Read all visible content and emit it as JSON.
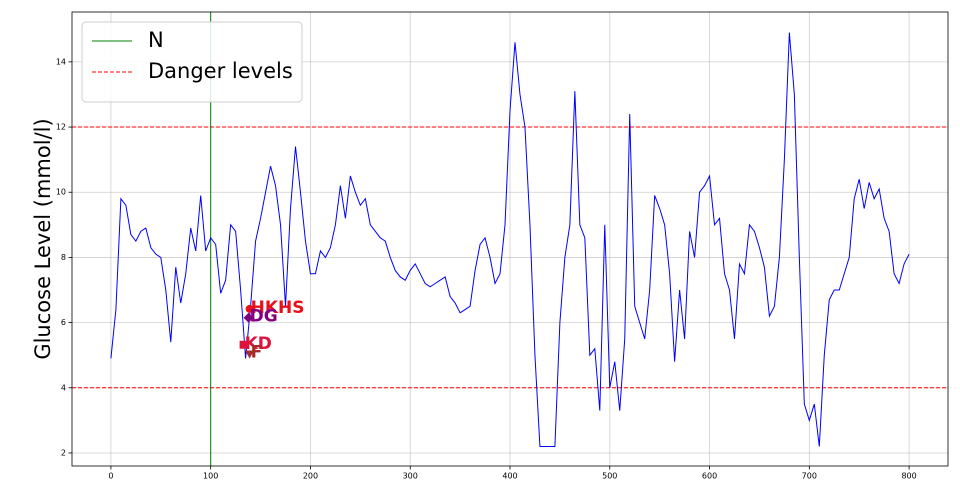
{
  "chart_data": {
    "type": "line",
    "ylabel": "Glucose Level (mmol/l)",
    "xlim": [
      -39,
      839
    ],
    "ylim": [
      1.6,
      15.53
    ],
    "xticks": [
      0,
      100,
      200,
      300,
      400,
      500,
      600,
      700,
      800
    ],
    "yticks": [
      2,
      4,
      6,
      8,
      10,
      12,
      14
    ],
    "grid": true,
    "legend": "upper left",
    "x": [
      0,
      5,
      10,
      15,
      20,
      25,
      30,
      35,
      40,
      45,
      50,
      55,
      60,
      65,
      70,
      75,
      80,
      85,
      90,
      95,
      100,
      105,
      110,
      115,
      120,
      125,
      130,
      135,
      140,
      145,
      150,
      155,
      160,
      165,
      170,
      175,
      180,
      185,
      190,
      195,
      200,
      205,
      210,
      215,
      220,
      225,
      230,
      235,
      240,
      245,
      250,
      255,
      260,
      265,
      270,
      275,
      280,
      285,
      290,
      295,
      300,
      305,
      310,
      315,
      320,
      325,
      330,
      335,
      340,
      345,
      350,
      355,
      360,
      365,
      370,
      375,
      380,
      385,
      390,
      395,
      400,
      405,
      410,
      415,
      420,
      425,
      430,
      435,
      440,
      445,
      450,
      455,
      460,
      465,
      470,
      475,
      480,
      485,
      490,
      495,
      500,
      505,
      510,
      515,
      520,
      525,
      530,
      535,
      540,
      545,
      550,
      555,
      560,
      565,
      570,
      575,
      580,
      585,
      590,
      595,
      600,
      605,
      610,
      615,
      620,
      625,
      630,
      635,
      640,
      645,
      650,
      655,
      660,
      665,
      670,
      675,
      680,
      685,
      690,
      695,
      700,
      705,
      710,
      715,
      720,
      725,
      730,
      735,
      740,
      745,
      750,
      755,
      760,
      765,
      770,
      775,
      780,
      785,
      790,
      795,
      800
    ],
    "series": [
      {
        "color": "#0000ff",
        "values": [
          4.9,
          6.4,
          9.8,
          9.6,
          8.7,
          8.5,
          8.8,
          8.9,
          8.3,
          8.1,
          8.0,
          7.0,
          5.4,
          7.7,
          6.6,
          7.5,
          8.9,
          8.2,
          9.9,
          8.2,
          8.6,
          8.4,
          6.9,
          7.3,
          9.0,
          8.8,
          7.0,
          4.9,
          6.5,
          8.5,
          9.2,
          10.0,
          10.8,
          10.2,
          9.0,
          6.5,
          9.5,
          11.4,
          10.0,
          8.5,
          7.5,
          7.5,
          8.2,
          8.0,
          8.3,
          9.0,
          10.2,
          9.2,
          10.5,
          10.0,
          9.6,
          9.8,
          9.0,
          8.8,
          8.6,
          8.5,
          8.0,
          7.6,
          7.4,
          7.3,
          7.6,
          7.8,
          7.5,
          7.2,
          7.1,
          7.2,
          7.3,
          7.4,
          6.8,
          6.6,
          6.3,
          6.4,
          6.5,
          7.6,
          8.4,
          8.6,
          8.0,
          7.2,
          7.5,
          9.0,
          12.5,
          14.6,
          13.0,
          12.0,
          9.0,
          5.0,
          2.2,
          2.2,
          2.2,
          2.2,
          6.0,
          8.0,
          9.0,
          13.1,
          9.0,
          8.6,
          5.0,
          5.2,
          3.3,
          9.0,
          4.0,
          4.8,
          3.3,
          5.5,
          12.4,
          6.5,
          6.0,
          5.5,
          7.0,
          9.9,
          9.5,
          9.0,
          7.5,
          4.8,
          7.0,
          5.5,
          8.8,
          8.0,
          10.0,
          10.2,
          10.5,
          9.0,
          9.2,
          7.5,
          7.0,
          5.5,
          7.8,
          7.5,
          9.0,
          8.8,
          8.3,
          7.7,
          6.2,
          6.5,
          8.0,
          11.0,
          14.9,
          13.0,
          8.0,
          3.5,
          3.0,
          3.5,
          2.2,
          5.0,
          6.7,
          7.0,
          7.0,
          7.5,
          8.0,
          9.8,
          10.4,
          9.5,
          10.3,
          9.8,
          10.1,
          9.2,
          8.8,
          7.5,
          7.2,
          7.8,
          8.1
        ]
      }
    ],
    "vline": {
      "name": "N",
      "x": 100,
      "color": "#008000"
    },
    "hlines": {
      "name": "Danger levels",
      "values": [
        12,
        4
      ],
      "color": "#ff0000"
    },
    "events": [
      {
        "label": "HKHS",
        "x": 139,
        "y": 6.42,
        "color": "#e8101a",
        "marker": "circle"
      },
      {
        "label": "DG",
        "x": 138,
        "y": 6.15,
        "color": "#800080",
        "marker": "diamond"
      },
      {
        "label": "KD",
        "x": 133,
        "y": 5.32,
        "color": "#dc143c",
        "marker": "square"
      },
      {
        "label": "F",
        "x": 139,
        "y": 5.05,
        "color": "#a52a2a",
        "marker": "triangle"
      }
    ]
  }
}
